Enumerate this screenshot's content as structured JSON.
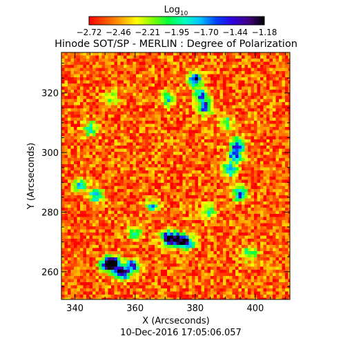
{
  "chart_data": {
    "type": "heatmap",
    "title": "Hinode SOT/SP - MERLIN : Degree of Polarization",
    "colorbar": {
      "label": "Log",
      "label_subscript": "10",
      "min": -2.72,
      "max": -1.18,
      "tick_labels": [
        "-2.72",
        "-2.46",
        "-2.21",
        "-1.95",
        "-1.70",
        "-1.44",
        "-1.18"
      ],
      "colormap": [
        "#ff0000",
        "#ff5000",
        "#ffa000",
        "#ffff00",
        "#80ff00",
        "#00ff40",
        "#00ffc0",
        "#00c0ff",
        "#0040ff",
        "#3000e0",
        "#400080",
        "#000000"
      ]
    },
    "xlabel": "X (Arcseconds)",
    "ylabel": "Y (Arcseconds)",
    "xlim": [
      335.5,
      411.5
    ],
    "ylim": [
      250.7,
      333.6
    ],
    "xticks": [
      "340",
      "360",
      "380",
      "400"
    ],
    "yticks": [
      "260",
      "280",
      "300",
      "320"
    ],
    "background_level": -2.55,
    "features": [
      {
        "x": 374.0,
        "y": 270.6,
        "level": -1.2
      },
      {
        "x": 370.8,
        "y": 271.2,
        "level": -1.25
      },
      {
        "x": 377.4,
        "y": 269.8,
        "level": -1.3
      },
      {
        "x": 355.5,
        "y": 259.6,
        "level": -1.2
      },
      {
        "x": 352.7,
        "y": 263.0,
        "level": -1.25
      },
      {
        "x": 350.5,
        "y": 262.4,
        "level": -1.4
      },
      {
        "x": 358.9,
        "y": 261.8,
        "level": -1.45
      },
      {
        "x": 379.9,
        "y": 324.5,
        "level": -1.3
      },
      {
        "x": 381.8,
        "y": 319.4,
        "level": -1.55
      },
      {
        "x": 383.2,
        "y": 315.2,
        "level": -1.45
      },
      {
        "x": 394.1,
        "y": 302.6,
        "level": -1.45
      },
      {
        "x": 393.4,
        "y": 298.8,
        "level": -1.5
      },
      {
        "x": 391.5,
        "y": 294.3,
        "level": -1.55
      },
      {
        "x": 395.0,
        "y": 286.0,
        "level": -1.55
      },
      {
        "x": 347.0,
        "y": 285.5,
        "level": -1.6
      },
      {
        "x": 342.0,
        "y": 289.0,
        "level": -1.8
      },
      {
        "x": 366.0,
        "y": 282.0,
        "level": -1.85
      },
      {
        "x": 371.0,
        "y": 318.0,
        "level": -1.8
      },
      {
        "x": 345.0,
        "y": 308.0,
        "level": -1.85
      },
      {
        "x": 352.0,
        "y": 318.0,
        "level": -1.9
      },
      {
        "x": 385.0,
        "y": 280.0,
        "level": -1.85
      },
      {
        "x": 398.0,
        "y": 266.0,
        "level": -1.85
      },
      {
        "x": 360.0,
        "y": 273.0,
        "level": -1.9
      },
      {
        "x": 390.0,
        "y": 310.0,
        "level": -1.9
      }
    ]
  },
  "footer_timestamp": "10-Dec-2016 17:05:06.057"
}
